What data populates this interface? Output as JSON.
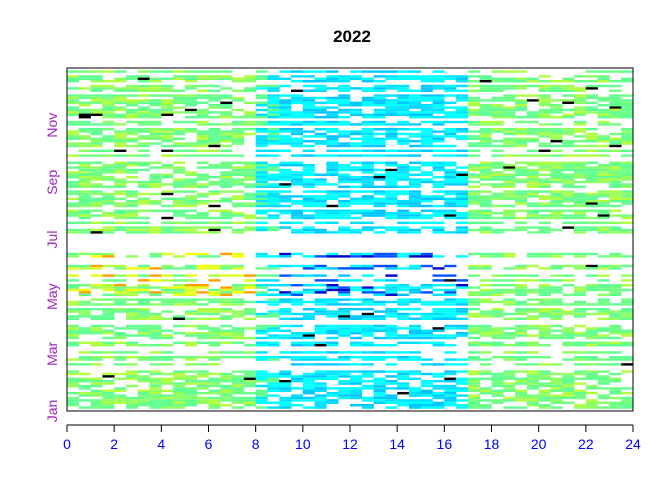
{
  "colors": {
    "background": "#ffffff",
    "axis": "#000000",
    "x_tick_label": "#0000ff",
    "y_tick_label": "#a020c0",
    "title": "#000000"
  },
  "chart_data": {
    "type": "heatmap",
    "title": "2022",
    "xlabel": "",
    "ylabel": "",
    "x_range": [
      0,
      24
    ],
    "x_ticks": [
      0,
      2,
      4,
      6,
      8,
      10,
      12,
      14,
      16,
      18,
      20,
      22,
      24
    ],
    "x_tick_labels": [
      "0",
      "2",
      "4",
      "6",
      "8",
      "10",
      "12",
      "14",
      "16",
      "18",
      "20",
      "22",
      "24"
    ],
    "y_range": [
      "Jan",
      "Dec"
    ],
    "y_ticks": [
      "Jan",
      "Mar",
      "May",
      "Jul",
      "Sep",
      "Nov"
    ],
    "y_tick_labels": [
      "Jan",
      "Mar",
      "May",
      "Jul",
      "Sep",
      "Nov"
    ],
    "color_scale": {
      "palette": "rainbow",
      "colors_low_to_high": [
        "#0000c8",
        "#0050ff",
        "#00c8ff",
        "#00ffff",
        "#60ff90",
        "#b0ff40",
        "#ffff00",
        "#ffa000",
        "#ff4000",
        "#000000"
      ]
    },
    "blank_periods": [
      {
        "months": "late Jun – early Jul",
        "hours": [
          0,
          24
        ]
      }
    ],
    "regions": [
      {
        "months": "Jan–Dec",
        "hours": [
          0,
          9
        ],
        "typical_color": "#60ff90"
      },
      {
        "months": "Jan–Dec",
        "hours": [
          9,
          17
        ],
        "typical_color": "#00ffff"
      },
      {
        "months": "Jan–Dec",
        "hours": [
          17,
          24
        ],
        "typical_color": "#60ff90"
      },
      {
        "months": "May–Jun",
        "hours": [
          9,
          17
        ],
        "typical_color": "#0000c8"
      },
      {
        "months": "May–Jun",
        "hours": [
          0,
          8
        ],
        "typical_color": "#ffff00"
      }
    ],
    "grid": false,
    "legend": "none"
  }
}
